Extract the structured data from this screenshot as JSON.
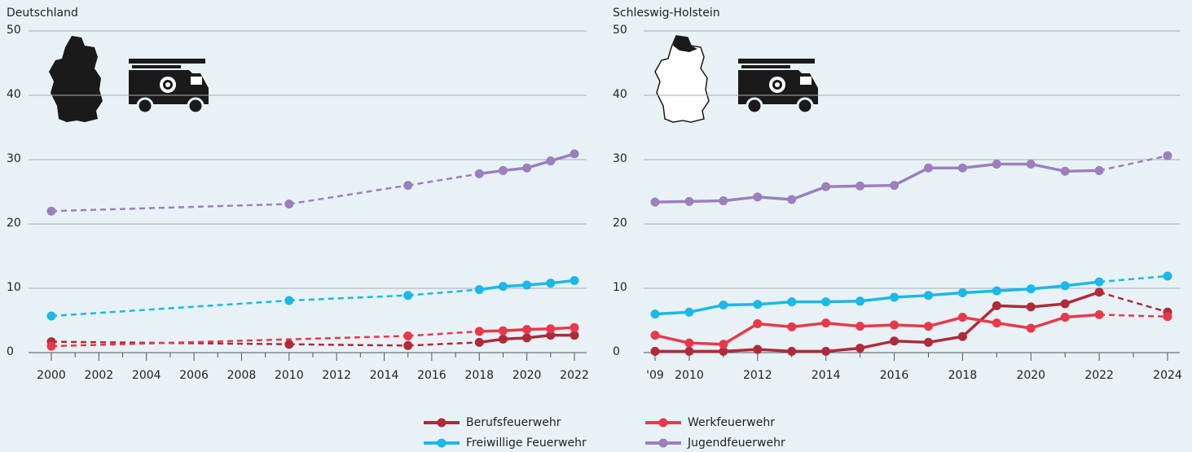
{
  "chart_data": [
    {
      "type": "line",
      "title": "Deutschland",
      "xlim": [
        2000,
        2022
      ],
      "xticks": [
        2000,
        2002,
        2004,
        2006,
        2008,
        2010,
        2012,
        2014,
        2016,
        2018,
        2020,
        2022
      ],
      "xminorticks": [
        2001,
        2003,
        2005,
        2007,
        2009,
        2011,
        2013,
        2015,
        2017,
        2019,
        2021
      ],
      "ylim": [
        0,
        50
      ],
      "yticks": [
        0,
        10,
        20,
        30,
        40,
        50
      ],
      "grid": true,
      "series": [
        {
          "name": "Berufsfeuerwehr",
          "color": "#b02a3a",
          "x": [
            2000,
            2010,
            2015,
            2018,
            2019,
            2020,
            2021,
            2022
          ],
          "values": [
            1.7,
            1.3,
            1.1,
            1.6,
            2.1,
            2.3,
            2.7,
            2.7
          ]
        },
        {
          "name": "Werkfeuerwehr",
          "color": "#e8394b",
          "x": [
            2000,
            2015,
            2018,
            2019,
            2020,
            2021,
            2022
          ],
          "values": [
            1.0,
            2.6,
            3.3,
            3.4,
            3.6,
            3.7,
            3.9
          ]
        },
        {
          "name": "Freiwillige Feuerwehr",
          "color": "#1bb8e8",
          "x": [
            2000,
            2010,
            2015,
            2018,
            2019,
            2020,
            2021,
            2022
          ],
          "values": [
            5.7,
            8.1,
            8.9,
            9.8,
            10.3,
            10.5,
            10.8,
            11.2
          ]
        },
        {
          "name": "Jugendfeuerwehr",
          "color": "#9b80bd",
          "x": [
            2000,
            2010,
            2015,
            2018,
            2019,
            2020,
            2021,
            2022
          ],
          "values": [
            22.0,
            23.1,
            26.0,
            27.8,
            28.3,
            28.7,
            29.8,
            30.9
          ]
        }
      ]
    },
    {
      "type": "line",
      "title": "Schleswig-Holstein",
      "x": [
        2009,
        2010,
        2011,
        2012,
        2013,
        2014,
        2015,
        2016,
        2017,
        2018,
        2019,
        2020,
        2021,
        2022,
        2024
      ],
      "xlim": [
        2009,
        2024
      ],
      "xticks": [
        {
          "value": 2009,
          "label": "'09"
        },
        2010,
        2012,
        2014,
        2016,
        2018,
        2020,
        2022,
        2024
      ],
      "xminorticks": [
        2011,
        2013,
        2015,
        2017,
        2019,
        2021,
        2023
      ],
      "ylim": [
        0,
        50
      ],
      "yticks": [
        0,
        10,
        20,
        30,
        40,
        50
      ],
      "grid": true,
      "series": [
        {
          "name": "Berufsfeuerwehr",
          "color": "#b02a3a",
          "values": [
            0.2,
            0.2,
            0.2,
            0.5,
            0.2,
            0.2,
            0.7,
            1.8,
            1.6,
            2.5,
            7.3,
            7.1,
            7.6,
            9.4,
            6.3
          ]
        },
        {
          "name": "Werkfeuerwehr",
          "color": "#e8394b",
          "values": [
            2.7,
            1.5,
            1.3,
            4.5,
            4.0,
            4.6,
            4.1,
            4.3,
            4.1,
            5.5,
            4.6,
            3.8,
            5.5,
            5.9,
            5.6
          ]
        },
        {
          "name": "Freiwillige Feuerwehr",
          "color": "#1bb8e8",
          "values": [
            6.0,
            6.3,
            7.4,
            7.5,
            7.9,
            7.9,
            8.0,
            8.6,
            8.9,
            9.3,
            9.6,
            9.9,
            10.4,
            11.0,
            11.9
          ]
        },
        {
          "name": "Jugendfeuerwehr",
          "color": "#9b80bd",
          "values": [
            23.4,
            23.5,
            23.6,
            24.2,
            23.8,
            25.8,
            25.9,
            26.0,
            28.7,
            28.7,
            29.3,
            29.3,
            28.2,
            28.3,
            30.6
          ]
        }
      ]
    }
  ]
}
